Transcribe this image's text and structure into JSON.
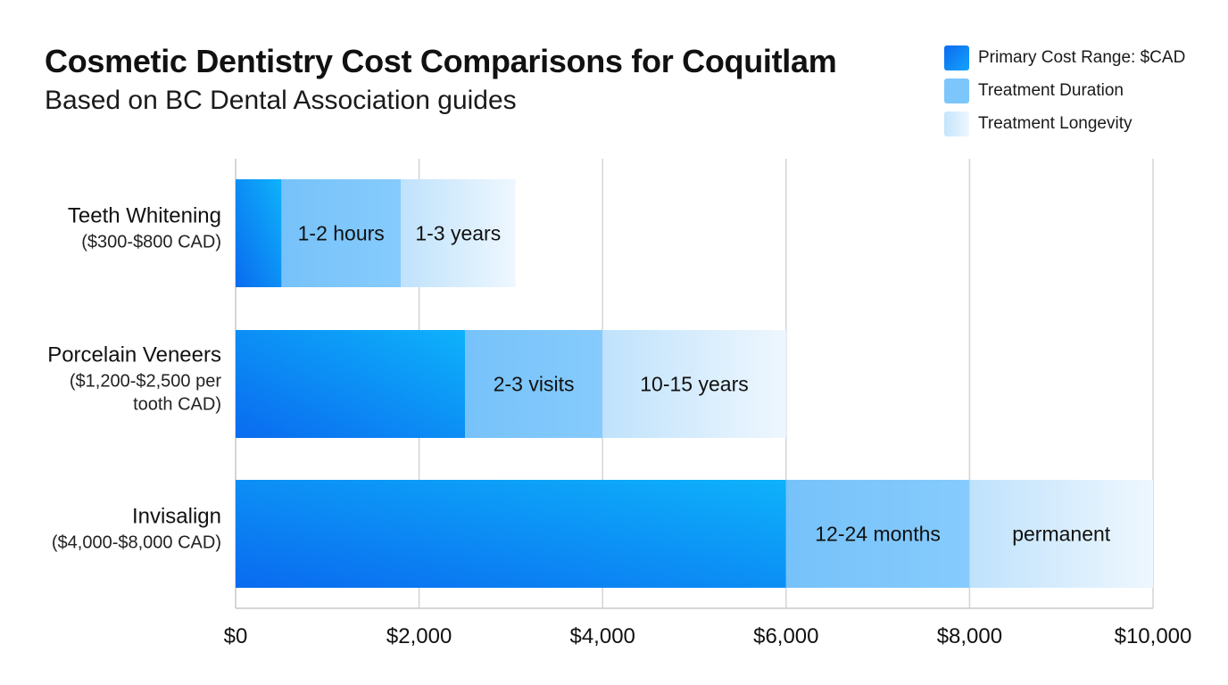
{
  "chart_data": {
    "type": "bar",
    "orientation": "horizontal",
    "stacked": true,
    "title": "Cosmetic Dentistry Cost Comparisons for Coquitlam",
    "subtitle": "Based on BC Dental Association guides",
    "xlim": [
      0,
      10000
    ],
    "x_ticks": [
      0,
      2000,
      4000,
      6000,
      8000,
      10000
    ],
    "x_tick_labels": [
      "$0",
      "$2,000",
      "$4,000",
      "$6,000",
      "$8,000",
      "$10,000"
    ],
    "grid": "vertical",
    "legend_position": "top-right",
    "categories": [
      {
        "name": "Teeth Whitening",
        "detail": "($300-$800 CAD)"
      },
      {
        "name": "Porcelain Veneers",
        "detail": "($1,200-$2,500 per tooth CAD)"
      },
      {
        "name": "Invisalign",
        "detail": "($4,000-$8,000 CAD)"
      }
    ],
    "series": [
      {
        "name": "Primary Cost Range: $CAD",
        "color": "#0a7fef",
        "values": [
          500,
          2500,
          6000
        ],
        "labels": [
          "",
          "",
          ""
        ]
      },
      {
        "name": "Treatment Duration",
        "color": "#7cc6fb",
        "values": [
          1300,
          1500,
          2000
        ],
        "labels": [
          "1-2 hours",
          "2-3 visits",
          "12-24 months"
        ]
      },
      {
        "name": "Treatment Longevity",
        "color": "#d4ecfd",
        "values": [
          1250,
          2000,
          2000
        ],
        "labels": [
          "1-3 years",
          "10-15 years",
          "permanent"
        ]
      }
    ]
  }
}
